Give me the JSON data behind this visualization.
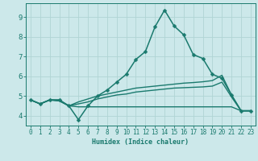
{
  "xlabel": "Humidex (Indice chaleur)",
  "bg_color": "#cce8ea",
  "grid_color": "#b0d4d4",
  "line_color": "#1a7a6e",
  "xlim": [
    -0.5,
    23.5
  ],
  "ylim": [
    3.5,
    9.7
  ],
  "xticks": [
    0,
    1,
    2,
    3,
    4,
    5,
    6,
    7,
    8,
    9,
    10,
    11,
    12,
    13,
    14,
    15,
    16,
    17,
    18,
    19,
    20,
    21,
    22,
    23
  ],
  "yticks": [
    4,
    5,
    6,
    7,
    8,
    9
  ],
  "series": [
    {
      "x": [
        0,
        1,
        2,
        3,
        4,
        5,
        6,
        7,
        8,
        9,
        10,
        11,
        12,
        13,
        14,
        15,
        16,
        17,
        18,
        19,
        20,
        21,
        22,
        23
      ],
      "y": [
        4.8,
        4.6,
        4.8,
        4.8,
        4.5,
        3.8,
        4.5,
        5.0,
        5.3,
        5.7,
        6.1,
        6.85,
        7.25,
        8.5,
        9.35,
        8.55,
        8.1,
        7.1,
        6.9,
        6.1,
        5.9,
        5.05,
        4.25,
        4.25
      ],
      "marker": "D",
      "markersize": 2.5,
      "linewidth": 1.1,
      "linestyle": "-"
    },
    {
      "x": [
        0,
        1,
        2,
        3,
        4,
        5,
        6,
        7,
        8,
        9,
        10,
        11,
        12,
        13,
        14,
        15,
        16,
        17,
        18,
        19,
        20,
        21,
        22,
        23
      ],
      "y": [
        4.8,
        4.6,
        4.8,
        4.8,
        4.5,
        4.7,
        4.85,
        5.0,
        5.1,
        5.2,
        5.3,
        5.4,
        5.45,
        5.5,
        5.55,
        5.6,
        5.65,
        5.68,
        5.72,
        5.78,
        6.05,
        5.05,
        4.25,
        4.25
      ],
      "marker": "None",
      "markersize": 0,
      "linewidth": 1.0,
      "linestyle": "-"
    },
    {
      "x": [
        0,
        1,
        2,
        3,
        4,
        5,
        6,
        7,
        8,
        9,
        10,
        11,
        12,
        13,
        14,
        15,
        16,
        17,
        18,
        19,
        20,
        21,
        22,
        23
      ],
      "y": [
        4.8,
        4.6,
        4.8,
        4.75,
        4.5,
        4.6,
        4.7,
        4.85,
        4.95,
        5.05,
        5.1,
        5.2,
        5.25,
        5.3,
        5.35,
        5.4,
        5.42,
        5.44,
        5.46,
        5.5,
        5.7,
        4.95,
        4.25,
        4.25
      ],
      "marker": "None",
      "markersize": 0,
      "linewidth": 1.0,
      "linestyle": "-"
    },
    {
      "x": [
        0,
        1,
        2,
        3,
        4,
        5,
        6,
        7,
        8,
        9,
        10,
        11,
        12,
        13,
        14,
        15,
        16,
        17,
        18,
        19,
        20,
        21,
        22,
        23
      ],
      "y": [
        4.8,
        4.6,
        4.8,
        4.75,
        4.5,
        4.45,
        4.45,
        4.45,
        4.45,
        4.45,
        4.45,
        4.45,
        4.45,
        4.45,
        4.45,
        4.45,
        4.45,
        4.45,
        4.45,
        4.45,
        4.45,
        4.45,
        4.25,
        4.25
      ],
      "marker": "None",
      "markersize": 0,
      "linewidth": 1.0,
      "linestyle": "-"
    }
  ]
}
